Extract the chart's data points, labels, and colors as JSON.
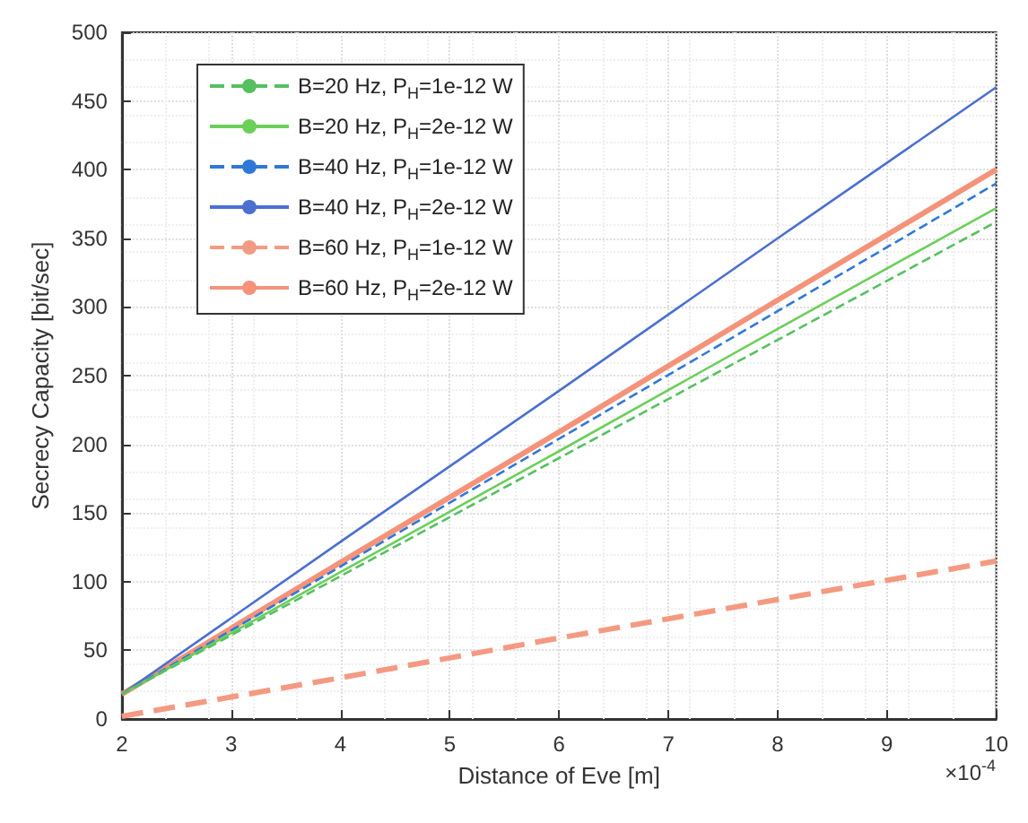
{
  "chart_data": {
    "type": "line",
    "xlabel": "Distance of Eve [m]",
    "ylabel": "Secrecy Capacity [bit/sec]",
    "x": [
      2,
      4,
      6,
      8,
      10
    ],
    "series": [
      {
        "name": "B=20 Hz, P$_{H}$=1e-12 W",
        "color": "#55c060",
        "line_style": "dashed",
        "values": [
          18,
          104,
          190,
          276,
          362
        ]
      },
      {
        "name": "B=20 Hz, P$_{H}$=2e-12 W",
        "color": "#6ccf5a",
        "line_style": "solid",
        "values": [
          18,
          107,
          195,
          284,
          372
        ]
      },
      {
        "name": "B=40 Hz, P$_{H}$=1e-12 W",
        "color": "#2f78d8",
        "line_style": "dashed",
        "values": [
          18,
          111,
          204,
          297,
          390
        ]
      },
      {
        "name": "B=40 Hz, P$_{H}$=2e-12 W",
        "color": "#4a6fd0",
        "line_style": "solid",
        "values": [
          18,
          129,
          239,
          350,
          460
        ]
      },
      {
        "name": "B=60 Hz, P$_{H}$=1e-12 W",
        "color": "#f49a82",
        "line_style": "dashed",
        "values": [
          2,
          30,
          59,
          87,
          115
        ]
      },
      {
        "name": "B=60 Hz, P$_{H}$=2e-12 W",
        "color": "#f4937a",
        "line_style": "solid",
        "values": [
          18,
          114,
          209,
          305,
          400
        ]
      }
    ],
    "xlim": [
      2,
      10
    ],
    "xticks": [
      2,
      3,
      4,
      5,
      6,
      7,
      8,
      9,
      10
    ],
    "ylim": [
      0,
      500
    ],
    "yticks": [
      0,
      50,
      100,
      150,
      200,
      250,
      300,
      350,
      400,
      450,
      500
    ],
    "grid": true,
    "legend": "top left",
    "marker": "none",
    "annotations": [
      "×10$^{-4}$"
    ]
  }
}
